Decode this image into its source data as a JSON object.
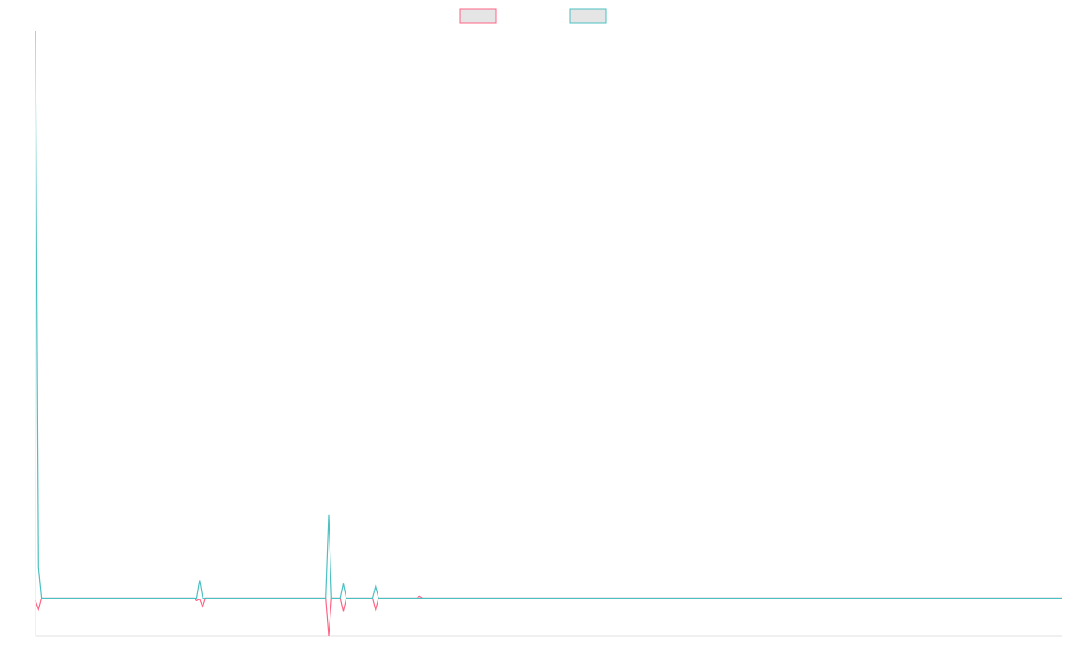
{
  "chart_data": {
    "type": "line",
    "x": [
      0,
      1,
      2,
      54,
      55,
      56,
      57,
      58,
      99,
      100,
      101,
      104,
      105,
      106,
      115,
      116,
      117,
      130,
      131,
      132,
      350
    ],
    "series": [
      {
        "color": "#ff6384",
        "values": [
          -0.7,
          -3,
          0,
          0,
          -0.7,
          -0.3,
          -2.4,
          0,
          0,
          -10,
          0,
          0,
          -3.5,
          0,
          0,
          -3,
          0,
          0,
          0.5,
          0,
          0
        ]
      },
      {
        "color": "#4bc0c0",
        "values": [
          150,
          8,
          0,
          0,
          0,
          4.7,
          0,
          0,
          0,
          22,
          0,
          0,
          3.8,
          0,
          0,
          3,
          0,
          0,
          0,
          0,
          0
        ]
      }
    ],
    "legend": "top",
    "xlim": [
      0,
      350
    ],
    "ylim": [
      -10,
      150
    ]
  }
}
